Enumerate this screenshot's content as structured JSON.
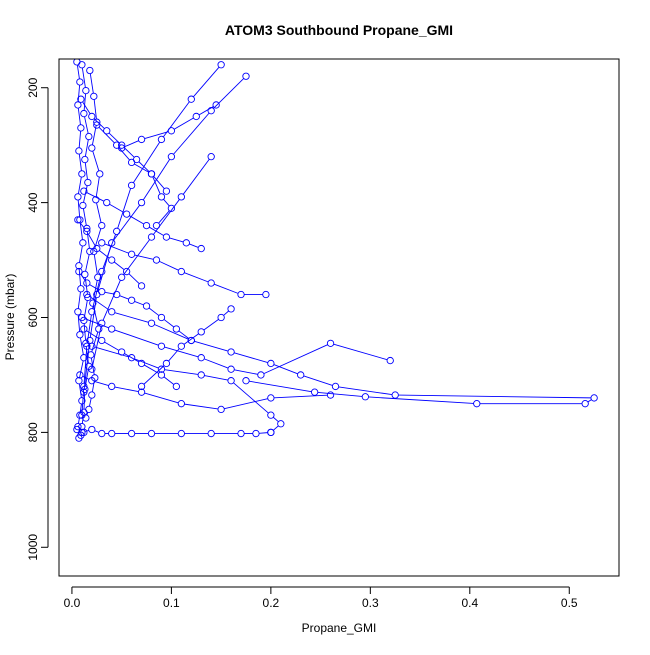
{
  "chart_data": {
    "type": "scatter",
    "title": "ATOM3 Southbound Propane_GMI",
    "xlabel": "Propane_GMI",
    "ylabel": "Pressure (mbar)",
    "xlim": [
      -0.013,
      0.55
    ],
    "ylim": [
      1050,
      150
    ],
    "y_axis_inverted": true,
    "x_ticks": [
      0.0,
      0.1,
      0.2,
      0.3,
      0.4,
      0.5
    ],
    "x_tick_labels": [
      "0.0",
      "0.1",
      "0.2",
      "0.3",
      "0.4",
      "0.5"
    ],
    "y_ticks": [
      200,
      400,
      600,
      800,
      1000
    ],
    "y_tick_labels": [
      "200",
      "400",
      "600",
      "800",
      "1000"
    ],
    "grid": false,
    "legend": "none",
    "marker": "open-circle",
    "connected": true,
    "color": "#0000ff",
    "series": [
      {
        "x": [
          0.005,
          0.008,
          0.006,
          0.009,
          0.007,
          0.01,
          0.006,
          0.008,
          0.011,
          0.007,
          0.009,
          0.006,
          0.008,
          0.012,
          0.007,
          0.01,
          0.008,
          0.006,
          0.009,
          0.007
        ],
        "y": [
          155,
          190,
          230,
          270,
          310,
          350,
          390,
          430,
          470,
          510,
          550,
          590,
          630,
          670,
          710,
          745,
          770,
          790,
          805,
          810
        ]
      },
      {
        "x": [
          0.01,
          0.014,
          0.012,
          0.017,
          0.013,
          0.016,
          0.011,
          0.015,
          0.018,
          0.013,
          0.016,
          0.012,
          0.014,
          0.017,
          0.013,
          0.012,
          0.01,
          0.012
        ],
        "y": [
          160,
          205,
          245,
          285,
          325,
          365,
          405,
          445,
          485,
          525,
          565,
          605,
          645,
          685,
          725,
          765,
          790,
          800
        ]
      },
      {
        "x": [
          0.018,
          0.022,
          0.025,
          0.02,
          0.028,
          0.024,
          0.03,
          0.022,
          0.026,
          0.021,
          0.027,
          0.019,
          0.023,
          0.02,
          0.017,
          0.014
        ],
        "y": [
          170,
          215,
          260,
          305,
          350,
          395,
          440,
          485,
          530,
          575,
          620,
          665,
          705,
          735,
          760,
          775
        ]
      },
      {
        "x": [
          0.15,
          0.12,
          0.09,
          0.06,
          0.045,
          0.03,
          0.02,
          0.015,
          0.012,
          0.01
        ],
        "y": [
          160,
          220,
          290,
          370,
          450,
          520,
          590,
          650,
          720,
          770
        ]
      },
      {
        "x": [
          0.175,
          0.14,
          0.1,
          0.07,
          0.04,
          0.025,
          0.018,
          0.012
        ],
        "y": [
          180,
          240,
          320,
          400,
          470,
          560,
          640,
          730
        ]
      },
      {
        "x": [
          0.14,
          0.11,
          0.08,
          0.05,
          0.03,
          0.02
        ],
        "y": [
          320,
          390,
          460,
          530,
          610,
          690
        ]
      },
      {
        "x": [
          0.015,
          0.04,
          0.08,
          0.12,
          0.16,
          0.2,
          0.23,
          0.265,
          0.325,
          0.525,
          0.516,
          0.407,
          0.295,
          0.244,
          0.175
        ],
        "y": [
          560,
          590,
          610,
          640,
          660,
          680,
          700,
          720,
          735,
          740,
          750,
          750,
          738,
          730,
          710
        ]
      },
      {
        "x": [
          0.01,
          0.04,
          0.09,
          0.13,
          0.16,
          0.19,
          0.26,
          0.32
        ],
        "y": [
          600,
          620,
          650,
          670,
          690,
          700,
          645,
          675
        ]
      },
      {
        "x": [
          0.02,
          0.06,
          0.09,
          0.13,
          0.16,
          0.2,
          0.21,
          0.2
        ],
        "y": [
          650,
          670,
          690,
          700,
          710,
          770,
          785,
          800
        ]
      },
      {
        "x": [
          0.008,
          0.02,
          0.04,
          0.07,
          0.11,
          0.15,
          0.2,
          0.26
        ],
        "y": [
          700,
          710,
          720,
          730,
          750,
          760,
          740,
          735
        ]
      },
      {
        "x": [
          0.005,
          0.01,
          0.02,
          0.03,
          0.04,
          0.06,
          0.08,
          0.11,
          0.14,
          0.17,
          0.185,
          0.2
        ],
        "y": [
          795,
          800,
          795,
          802,
          802,
          802,
          802,
          802,
          802,
          802,
          802,
          800
        ]
      },
      {
        "x": [
          0.007,
          0.015,
          0.03,
          0.045,
          0.06,
          0.075,
          0.09,
          0.105,
          0.12
        ],
        "y": [
          520,
          540,
          555,
          560,
          570,
          580,
          600,
          620,
          640
        ]
      },
      {
        "x": [
          0.03,
          0.06,
          0.085,
          0.11,
          0.14,
          0.17,
          0.195
        ],
        "y": [
          470,
          490,
          500,
          520,
          540,
          560,
          560
        ]
      },
      {
        "x": [
          0.012,
          0.035,
          0.055,
          0.075,
          0.095,
          0.115,
          0.13
        ],
        "y": [
          380,
          400,
          420,
          440,
          460,
          470,
          480
        ]
      },
      {
        "x": [
          0.025,
          0.045,
          0.06,
          0.08,
          0.09,
          0.1,
          0.085
        ],
        "y": [
          265,
          300,
          330,
          350,
          390,
          410,
          440
        ]
      },
      {
        "x": [
          0.16,
          0.15,
          0.13,
          0.11,
          0.095,
          0.07
        ],
        "y": [
          585,
          600,
          625,
          650,
          680,
          720
        ]
      },
      {
        "x": [
          0.009,
          0.02,
          0.035,
          0.05,
          0.065,
          0.08,
          0.095
        ],
        "y": [
          220,
          250,
          275,
          300,
          325,
          350,
          380
        ]
      },
      {
        "x": [
          0.05,
          0.07,
          0.1,
          0.125,
          0.145
        ],
        "y": [
          305,
          290,
          275,
          250,
          230
        ]
      },
      {
        "x": [
          0.012,
          0.03,
          0.05,
          0.07,
          0.09,
          0.105
        ],
        "y": [
          620,
          640,
          660,
          680,
          700,
          720
        ]
      },
      {
        "x": [
          0.006,
          0.015,
          0.025,
          0.04,
          0.055,
          0.07
        ],
        "y": [
          430,
          450,
          480,
          500,
          520,
          545
        ]
      }
    ]
  }
}
